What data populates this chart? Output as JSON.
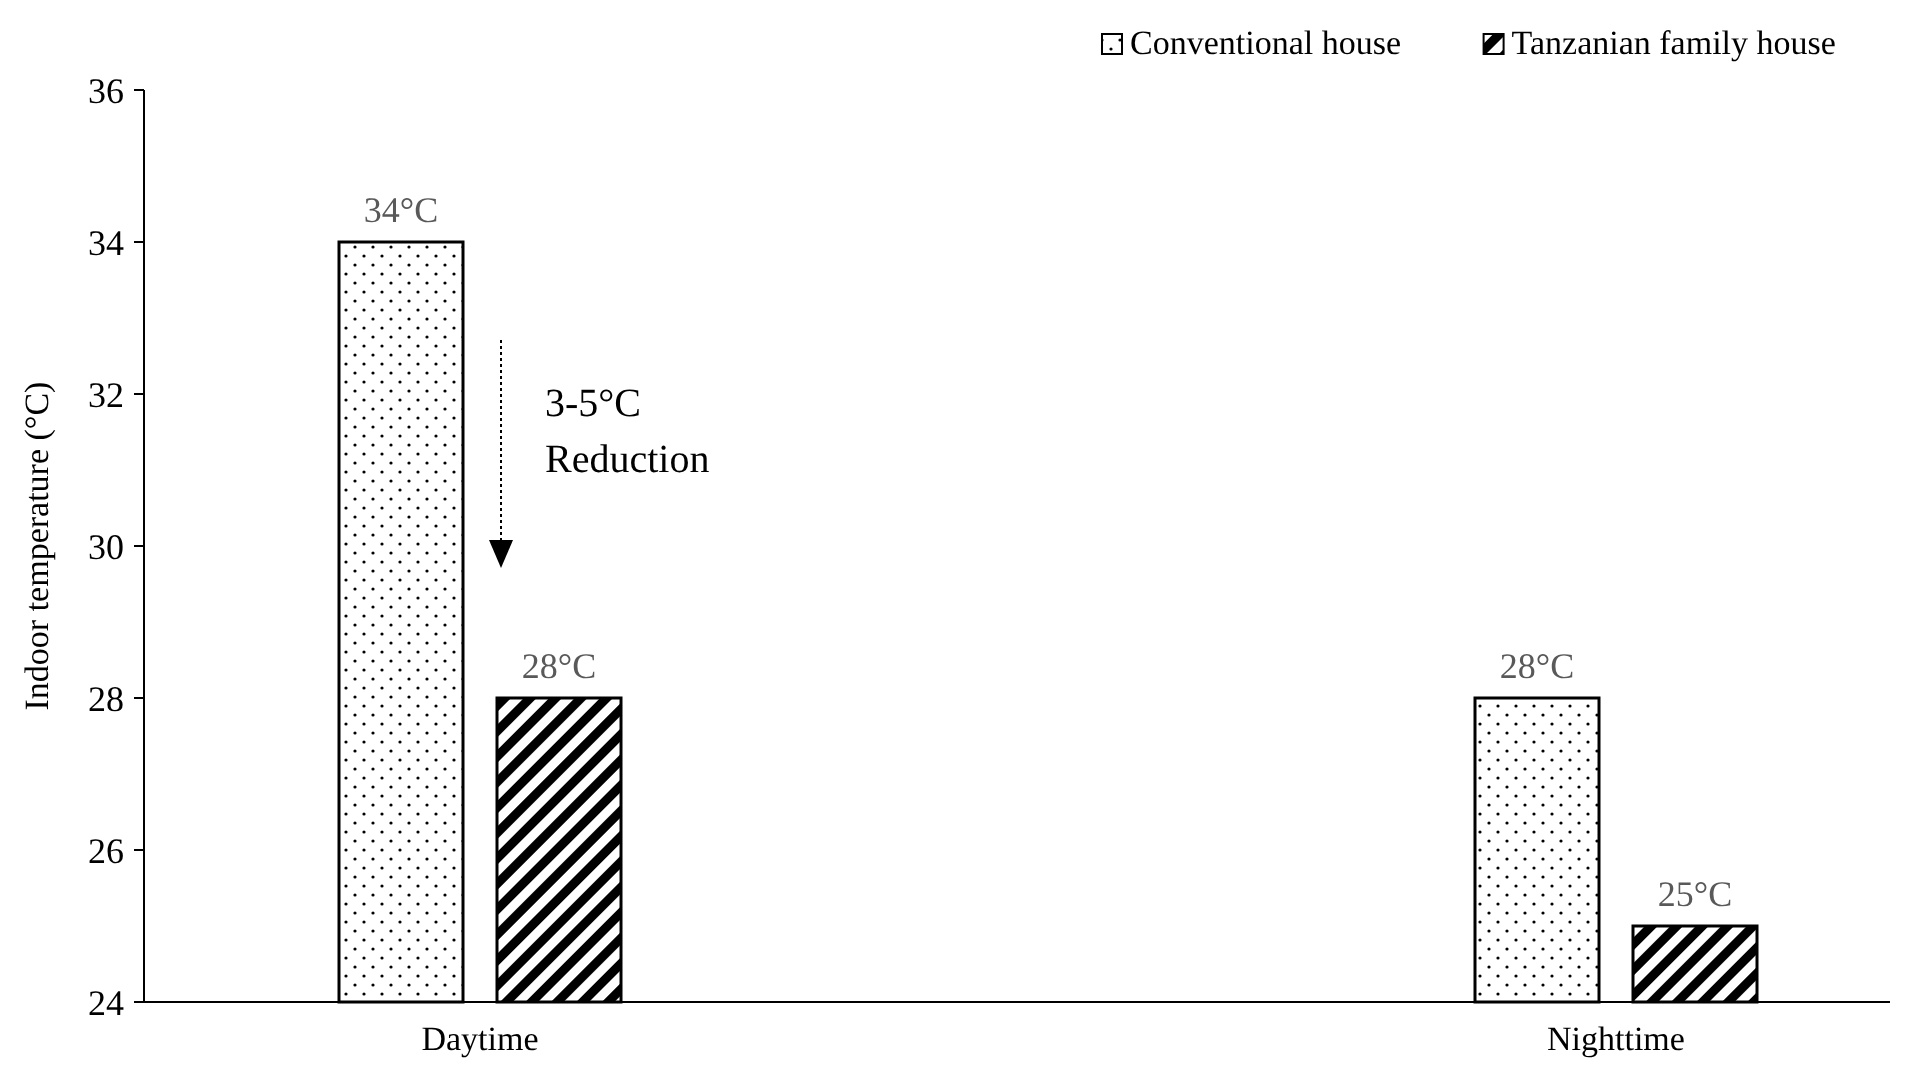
{
  "chart_data": {
    "type": "bar",
    "ylabel": "Indoor temperature (°C)",
    "categories": [
      "Daytime",
      "Nighttime"
    ],
    "series": [
      {
        "name": "Conventional house",
        "color": "#000000",
        "values": [
          34,
          28
        ],
        "value_labels": [
          "34°C",
          "28°C"
        ]
      },
      {
        "name": "Tanzanian family house",
        "color": "#000000",
        "values": [
          28,
          25
        ],
        "value_labels": [
          "28°C",
          "25°C"
        ]
      }
    ],
    "ylim": [
      24,
      36
    ],
    "yticks": [
      24,
      26,
      28,
      30,
      32,
      34,
      36
    ],
    "grid": false,
    "legend": "top right",
    "annotations": [
      "3-5°C\nReduction"
    ]
  }
}
